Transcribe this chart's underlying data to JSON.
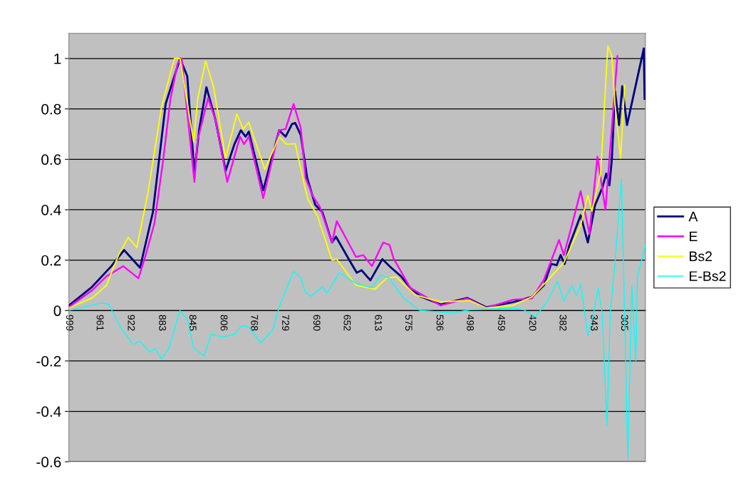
{
  "chart_data": {
    "type": "line",
    "xlim": [
      999,
      278
    ],
    "xticks": [
      999,
      961,
      922,
      883,
      845,
      806,
      768,
      729,
      690,
      652,
      613,
      575,
      536,
      498,
      459,
      420,
      382,
      343,
      305
    ],
    "ylim": [
      -0.6,
      1.1
    ],
    "yticks": [
      -0.6,
      -0.4,
      -0.2,
      0,
      0.2,
      0.4,
      0.6,
      0.8,
      1
    ],
    "grid": "y",
    "legend": "right",
    "line_style": "solid",
    "marker": "none",
    "series": [
      {
        "name": "A",
        "color": "#000080",
        "x": [
          999,
          970,
          946,
          930,
          910,
          894,
          878,
          860,
          851,
          842,
          836,
          827,
          816,
          803,
          792,
          784,
          778,
          774,
          756,
          736,
          728,
          720,
          716,
          709,
          701,
          691,
          682,
          670,
          665,
          649,
          639,
          633,
          622,
          607,
          596,
          584,
          572,
          560,
          534,
          501,
          477,
          444,
          420,
          405,
          396,
          389,
          384,
          379,
          373,
          359,
          350,
          341,
          332,
          327,
          323,
          320,
          316,
          311,
          307,
          301,
          280,
          279
        ],
        "values": [
          0.02,
          0.094,
          0.176,
          0.24,
          0.17,
          0.39,
          0.82,
          1.0,
          0.93,
          0.545,
          0.72,
          0.886,
          0.76,
          0.555,
          0.66,
          0.715,
          0.69,
          0.71,
          0.477,
          0.715,
          0.69,
          0.74,
          0.744,
          0.696,
          0.526,
          0.42,
          0.39,
          0.27,
          0.293,
          0.204,
          0.15,
          0.16,
          0.12,
          0.204,
          0.17,
          0.137,
          0.09,
          0.057,
          0.024,
          0.05,
          0.013,
          0.033,
          0.054,
          0.1,
          0.185,
          0.18,
          0.22,
          0.185,
          0.26,
          0.378,
          0.27,
          0.418,
          0.486,
          0.543,
          0.497,
          0.6,
          0.87,
          0.736,
          0.89,
          0.736,
          1.04,
          0.84
        ]
      },
      {
        "name": "E",
        "color": "#ff00ff",
        "x": [
          999,
          970,
          952,
          931,
          912,
          903,
          892,
          881,
          872,
          863,
          858,
          842,
          838,
          825,
          816,
          801,
          785,
          780,
          774,
          756,
          736,
          728,
          718,
          709,
          703,
          694,
          685,
          670,
          664,
          640,
          631,
          620,
          606,
          598,
          593,
          572,
          534,
          501,
          477,
          444,
          420,
          405,
          386,
          380,
          370,
          359,
          348,
          338,
          328,
          313
        ],
        "values": [
          0.014,
          0.08,
          0.136,
          0.176,
          0.128,
          0.22,
          0.347,
          0.6,
          0.84,
          0.98,
          1.0,
          0.51,
          0.676,
          0.843,
          0.76,
          0.51,
          0.69,
          0.66,
          0.69,
          0.446,
          0.715,
          0.72,
          0.82,
          0.724,
          0.526,
          0.455,
          0.41,
          0.27,
          0.355,
          0.213,
          0.22,
          0.176,
          0.27,
          0.26,
          0.207,
          0.09,
          0.02,
          0.048,
          0.01,
          0.043,
          0.048,
          0.122,
          0.28,
          0.22,
          0.338,
          0.474,
          0.304,
          0.61,
          0.4,
          1.01
        ]
      },
      {
        "name": "Bs2",
        "color": "#ffff00",
        "x": [
          999,
          970,
          952,
          937,
          925,
          914,
          900,
          883,
          867,
          860,
          843,
          838,
          828,
          818,
          803,
          789,
          781,
          774,
          754,
          736,
          727,
          716,
          703,
          700,
          688,
          670,
          664,
          640,
          616,
          602,
          590,
          566,
          534,
          498,
          477,
          444,
          420,
          398,
          380,
          359,
          350,
          345,
          334,
          325,
          320,
          316,
          309,
          304
        ],
        "values": [
          0.01,
          0.05,
          0.1,
          0.22,
          0.29,
          0.25,
          0.47,
          0.81,
          1.0,
          1.0,
          0.668,
          0.838,
          0.99,
          0.886,
          0.605,
          0.78,
          0.72,
          0.747,
          0.56,
          0.69,
          0.66,
          0.662,
          0.477,
          0.44,
          0.375,
          0.2,
          0.204,
          0.1,
          0.085,
          0.128,
          0.134,
          0.062,
          0.034,
          0.04,
          0.01,
          0.02,
          0.054,
          0.128,
          0.19,
          0.338,
          0.457,
          0.395,
          0.543,
          1.05,
          1.01,
          0.815,
          0.605,
          0.895
        ]
      },
      {
        "name": "E-Bs2",
        "color": "#00ffff",
        "x": [
          999,
          958,
          949,
          934,
          919,
          910,
          898,
          891,
          883,
          874,
          860,
          851,
          843,
          830,
          821,
          807,
          792,
          783,
          774,
          759,
          744,
          736,
          718,
          709,
          703,
          696,
          682,
          676,
          661,
          640,
          620,
          609,
          598,
          581,
          560,
          518,
          498,
          444,
          430,
          416,
          402,
          388,
          380,
          370,
          364,
          359,
          350,
          343,
          337,
          332,
          326,
          322,
          316,
          308,
          304,
          300,
          295,
          290,
          288,
          278
        ],
        "values": [
          0.0,
          0.03,
          0.024,
          -0.07,
          -0.134,
          -0.122,
          -0.165,
          -0.15,
          -0.193,
          -0.148,
          0.0,
          -0.034,
          -0.148,
          -0.18,
          -0.094,
          -0.105,
          -0.094,
          -0.06,
          -0.065,
          -0.128,
          -0.077,
          0.014,
          0.156,
          0.128,
          0.07,
          0.057,
          0.094,
          0.07,
          0.15,
          0.108,
          0.09,
          0.142,
          0.128,
          0.051,
          0.0,
          -0.01,
          0.003,
          0.01,
          0.003,
          -0.026,
          0.03,
          0.116,
          0.037,
          0.1,
          0.06,
          0.105,
          -0.1,
          -0.014,
          0.088,
          -0.014,
          -0.457,
          -0.014,
          0.19,
          0.526,
          -0.014,
          -0.59,
          0.1,
          -0.2,
          0.134,
          0.26
        ]
      }
    ]
  }
}
